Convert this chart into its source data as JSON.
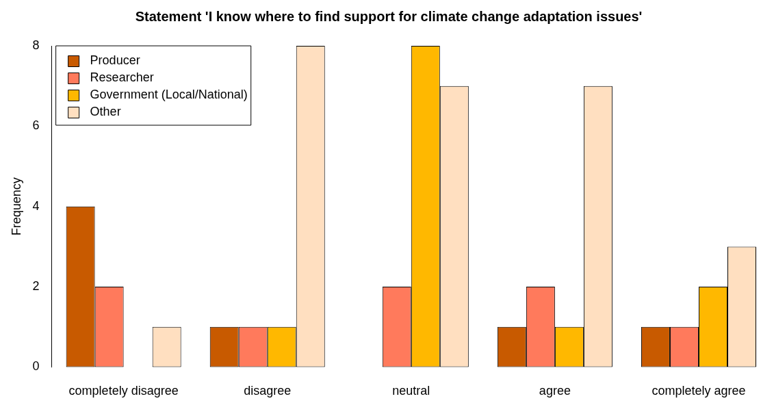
{
  "chart_data": {
    "type": "bar",
    "title": "Statement 'I know where to find support for climate change adaptation issues'",
    "ylabel": "Frequency",
    "categories": [
      "completely disagree",
      "disagree",
      "neutral",
      "agree",
      "completely agree"
    ],
    "series": [
      {
        "name": "Producer",
        "color": "#c85a00",
        "values": [
          4,
          1,
          0,
          1,
          1
        ]
      },
      {
        "name": "Researcher",
        "color": "#ff7a5c",
        "values": [
          2,
          1,
          2,
          2,
          1
        ]
      },
      {
        "name": "Government (Local/National)",
        "color": "#ffb800",
        "values": [
          0,
          1,
          8,
          1,
          2
        ]
      },
      {
        "name": "Other",
        "color": "#ffdfc0",
        "values": [
          1,
          8,
          7,
          7,
          3
        ]
      }
    ],
    "ylim": [
      0,
      8
    ],
    "yticks": [
      0,
      2,
      4,
      6,
      8
    ],
    "grid": false,
    "legend": "top left"
  }
}
